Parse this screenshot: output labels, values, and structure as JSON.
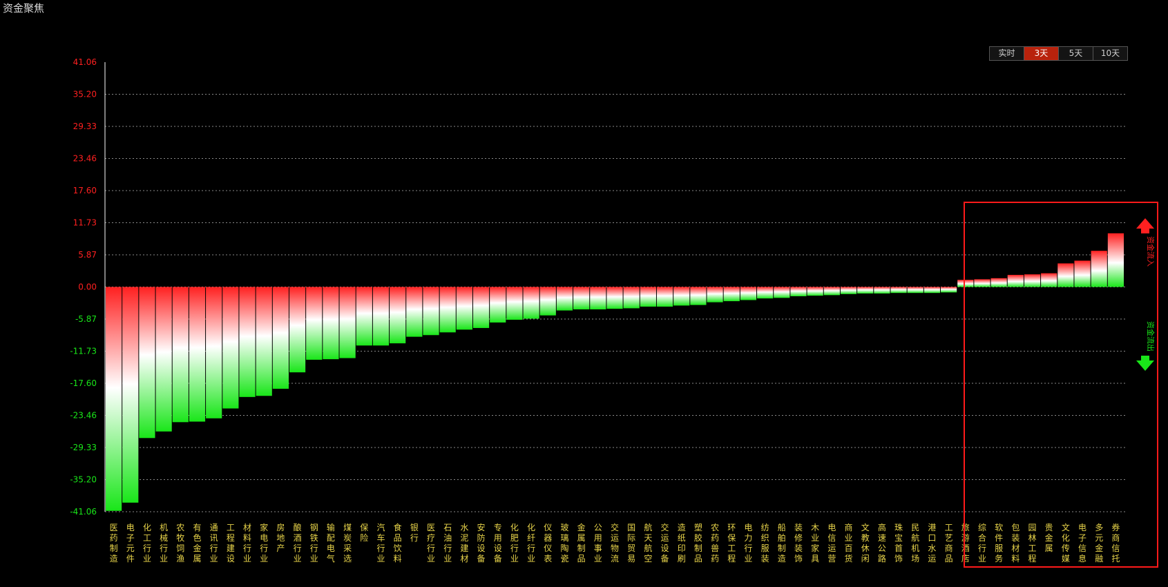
{
  "window": {
    "title": "资金聚焦"
  },
  "tabs": [
    {
      "label": "实时",
      "active": false
    },
    {
      "label": "3天",
      "active": true
    },
    {
      "label": "5天",
      "active": false
    },
    {
      "label": "10天",
      "active": false
    }
  ],
  "legend": {
    "inflow": "资金流入",
    "outflow": "资金流出"
  },
  "colors": {
    "positive": "#ff2020",
    "negative": "#19e619",
    "axis": "#ffffff",
    "grid": "#8a8a8a",
    "label": "#e8d44a",
    "highlight": "#ff1a1a"
  },
  "chart_data": {
    "type": "bar",
    "ylim": [
      -41.06,
      41.06
    ],
    "y_ticks": [
      "41.06",
      "35.20",
      "29.33",
      "23.46",
      "17.60",
      "11.73",
      "5.87",
      "0.00",
      "-5.87",
      "-11.73",
      "-17.60",
      "-23.46",
      "-29.33",
      "-35.20",
      "-41.06"
    ],
    "grid": true,
    "categories": [
      "医药制造",
      "电子元件",
      "化工行业",
      "机械行业",
      "农牧饲渔",
      "有色金属",
      "通讯行业",
      "工程建设",
      "材料行业",
      "家电行业",
      "房地产",
      "酿酒行业",
      "钢铁行业",
      "输配电气",
      "煤炭采选",
      "保险",
      "汽车行业",
      "食品饮料",
      "银行",
      "医疗行业",
      "石油行业",
      "水泥建材",
      "安防设备",
      "专用设备",
      "化肥行业",
      "化纤行业",
      "仪器仪表",
      "玻璃陶瓷",
      "金属制品",
      "公用事业",
      "交运物流",
      "国际贸易",
      "航天航空",
      "交运设备",
      "造纸印刷",
      "塑胶制品",
      "农药兽药",
      "环保工程",
      "电力行业",
      "纺织服装",
      "船舶制造",
      "装修装饰",
      "木业家具",
      "电信运营",
      "商业百货",
      "文教休闲",
      "高速公路",
      "珠宝首饰",
      "民航机场",
      "港口水运",
      "工艺商品",
      "旅游酒店",
      "综合行业",
      "软件服务",
      "包装材料",
      "园林工程",
      "贵金属",
      "文化传媒",
      "电子信息",
      "多元金融",
      "券商信托"
    ],
    "values": [
      -40.9,
      -39.4,
      -27.6,
      -26.4,
      -24.7,
      -24.6,
      -24.0,
      -22.2,
      -20.1,
      -19.9,
      -18.6,
      -15.6,
      -13.3,
      -13.2,
      -13.0,
      -10.7,
      -10.7,
      -10.3,
      -9.1,
      -8.8,
      -8.3,
      -7.8,
      -7.5,
      -6.5,
      -6.0,
      -5.8,
      -5.2,
      -4.3,
      -4.1,
      -4.1,
      -4.0,
      -3.9,
      -3.6,
      -3.6,
      -3.4,
      -3.3,
      -2.8,
      -2.6,
      -2.4,
      -2.1,
      -2.0,
      -1.7,
      -1.6,
      -1.5,
      -1.3,
      -1.2,
      -1.2,
      -1.1,
      -1.1,
      -1.1,
      -1.0,
      1.3,
      1.4,
      1.6,
      2.2,
      2.3,
      2.5,
      4.3,
      4.8,
      6.6,
      9.8
    ]
  }
}
